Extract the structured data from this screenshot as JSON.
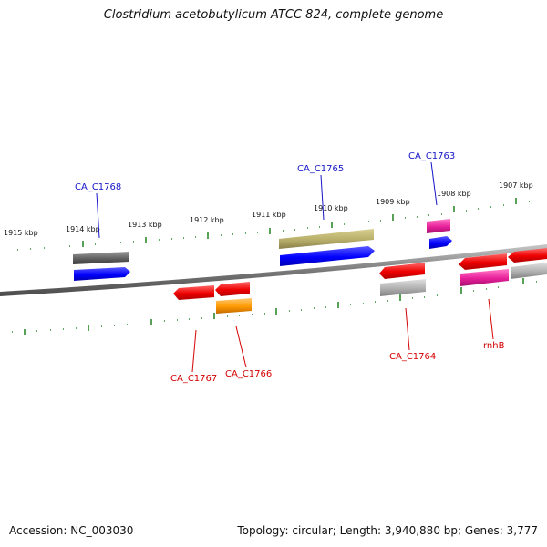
{
  "title": "Clostridium acetobutylicum ATCC 824, complete genome",
  "footer": {
    "accession": "Accession: NC_003030",
    "summary": "Topology: circular; Length: 3,940,880 bp; Genes: 3,777"
  },
  "scale_labels": [
    "1915 kbp",
    "1914 kbp",
    "1913 kbp",
    "1912 kbp",
    "1911 kbp",
    "1910 kbp",
    "1909 kbp",
    "1908 kbp",
    "1907 kbp"
  ],
  "genes_top": [
    {
      "name": "CA_C1768",
      "color": "#1515c8"
    },
    {
      "name": "CA_C1765",
      "color": "#1515c8"
    },
    {
      "name": "CA_C1763",
      "color": "#1515c8"
    }
  ],
  "genes_bottom": [
    {
      "name": "CA_C1767",
      "color": "#d40000"
    },
    {
      "name": "CA_C1766",
      "color": "#d40000"
    },
    {
      "name": "CA_C1764",
      "color": "#d40000"
    },
    {
      "name": "rnhB",
      "color": "#d40000"
    }
  ],
  "colors": {
    "backbone": "#808080",
    "ticks": "#2e8b2e",
    "blue": "#0000ff",
    "red": "#ff0000",
    "gray": "#a0a0a0",
    "darkgray": "#606060",
    "olive": "#b8ae6a",
    "pink": "#e8209a",
    "orange": "#ff9a00"
  }
}
